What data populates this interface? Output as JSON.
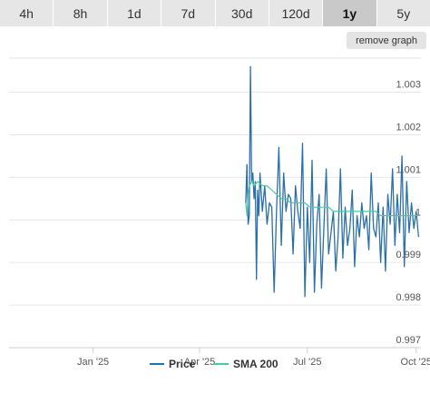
{
  "tabs": [
    {
      "label": "4h",
      "active": false
    },
    {
      "label": "8h",
      "active": false
    },
    {
      "label": "1d",
      "active": false
    },
    {
      "label": "7d",
      "active": false
    },
    {
      "label": "30d",
      "active": false
    },
    {
      "label": "120d",
      "active": false
    },
    {
      "label": "1y",
      "active": true
    },
    {
      "label": "5y",
      "active": false
    }
  ],
  "remove_graph_label": "remove graph",
  "colors": {
    "price": "#2a6fa8",
    "sma": "#4cc9a0",
    "grid": "#e6e6e6",
    "active_tab": "#c9c9c9",
    "tab": "#e6e6e6"
  },
  "chart_data": {
    "type": "line",
    "ylim": [
      0.997,
      1.0038
    ],
    "y_ticks": [
      "1.003",
      "1.002",
      "1.001",
      "1",
      "0.999",
      "0.998",
      "0.997"
    ],
    "x_ticks": [
      "Jan '25",
      "Apr '25",
      "Jul '25",
      "Oct '25"
    ],
    "xlim": [
      "2024-10-22",
      "2025-10-05"
    ],
    "grid": true,
    "legend_position": "bottom",
    "series": [
      {
        "name": "Price",
        "x": [
          "2025-05-10",
          "2025-05-11",
          "2025-05-12",
          "2025-05-13",
          "2025-05-14",
          "2025-05-15",
          "2025-05-16",
          "2025-05-17",
          "2025-05-18",
          "2025-05-19",
          "2025-05-20",
          "2025-05-21",
          "2025-05-22",
          "2025-05-24",
          "2025-05-26",
          "2025-05-28",
          "2025-05-30",
          "2025-06-01",
          "2025-06-03",
          "2025-06-05",
          "2025-06-07",
          "2025-06-09",
          "2025-06-11",
          "2025-06-13",
          "2025-06-15",
          "2025-06-17",
          "2025-06-19",
          "2025-06-21",
          "2025-06-23",
          "2025-06-25",
          "2025-06-27",
          "2025-06-29",
          "2025-07-01",
          "2025-07-03",
          "2025-07-05",
          "2025-07-07",
          "2025-07-09",
          "2025-07-11",
          "2025-07-13",
          "2025-07-15",
          "2025-07-17",
          "2025-07-19",
          "2025-07-21",
          "2025-07-23",
          "2025-07-25",
          "2025-07-27",
          "2025-07-29",
          "2025-07-31",
          "2025-08-02",
          "2025-08-04",
          "2025-08-06",
          "2025-08-08",
          "2025-08-10",
          "2025-08-12",
          "2025-08-14",
          "2025-08-16",
          "2025-08-18",
          "2025-08-20",
          "2025-08-22",
          "2025-08-24",
          "2025-08-26",
          "2025-08-28",
          "2025-08-30",
          "2025-09-01",
          "2025-09-03",
          "2025-09-05",
          "2025-09-07",
          "2025-09-09",
          "2025-09-11",
          "2025-09-13",
          "2025-09-15",
          "2025-09-17",
          "2025-09-19",
          "2025-09-21",
          "2025-09-23",
          "2025-09-25",
          "2025-09-27",
          "2025-09-29",
          "2025-10-01",
          "2025-10-03"
        ],
        "values": [
          1.0004,
          1.0013,
          0.9999,
          1.0001,
          1.0036,
          1.0009,
          1.0011,
          1.0005,
          1.0009,
          0.9986,
          1.0007,
          1.0001,
          1.0011,
          1.0002,
          1.0008,
          0.9999,
          1.0004,
          1.0003,
          0.9983,
          1.0002,
          1.0017,
          0.9994,
          1.0011,
          1.0002,
          1.0006,
          1.0005,
          0.9992,
          1.0008,
          1.0002,
          0.9998,
          1.0018,
          0.9982,
          1.0003,
          0.999,
          1.0014,
          0.9983,
          0.9999,
          1.0006,
          0.9984,
          0.9998,
          1.0012,
          0.9992,
          0.9997,
          1.0002,
          0.9988,
          0.9996,
          1.0012,
          0.9991,
          1.0003,
          0.9994,
          0.9998,
          1.0007,
          0.9989,
          1.0001,
          0.9996,
          1.0004,
          0.9998,
          1.0001,
          0.9993,
          1.0011,
          0.9998,
          0.9996,
          1.0004,
          0.999,
          1.0003,
          0.9988,
          1.0006,
          0.9999,
          1.0012,
          0.9994,
          1.0006,
          0.9997,
          1.0015,
          0.9989,
          1.0009,
          0.9997,
          1.0004,
          0.9998,
          1.0002,
          0.9996
        ]
      },
      {
        "name": "SMA 200",
        "x": [
          "2025-05-10",
          "2025-05-11",
          "2025-05-12",
          "2025-05-13",
          "2025-05-15",
          "2025-05-17",
          "2025-05-20",
          "2025-05-24",
          "2025-05-28",
          "2025-06-01",
          "2025-06-05",
          "2025-06-09",
          "2025-06-13",
          "2025-06-17",
          "2025-06-21",
          "2025-06-25",
          "2025-06-29",
          "2025-07-03",
          "2025-07-07",
          "2025-07-11",
          "2025-07-15",
          "2025-07-19",
          "2025-07-23",
          "2025-07-27",
          "2025-07-31",
          "2025-08-04",
          "2025-08-08",
          "2025-08-12",
          "2025-08-16",
          "2025-08-20",
          "2025-08-24",
          "2025-08-28",
          "2025-09-01",
          "2025-09-05",
          "2025-09-09",
          "2025-09-13",
          "2025-09-17",
          "2025-09-21",
          "2025-09-25",
          "2025-09-29",
          "2025-10-03"
        ],
        "values": [
          1.0004,
          1.0001,
          1.0006,
          1.0008,
          1.0009,
          1.0008,
          1.0009,
          1.0008,
          1.0008,
          1.0007,
          1.0006,
          1.0005,
          1.0005,
          1.0004,
          1.0004,
          1.0004,
          1.0004,
          1.0003,
          1.0003,
          1.0003,
          1.0003,
          1.0003,
          1.0002,
          1.0002,
          1.0002,
          1.0002,
          1.0002,
          1.0002,
          1.0002,
          1.0002,
          1.0002,
          1.0002,
          1.0001,
          1.0001,
          1.0001,
          1.0001,
          1.0001,
          1.0001,
          1.0001,
          1.0001,
          1.0001
        ]
      }
    ]
  }
}
